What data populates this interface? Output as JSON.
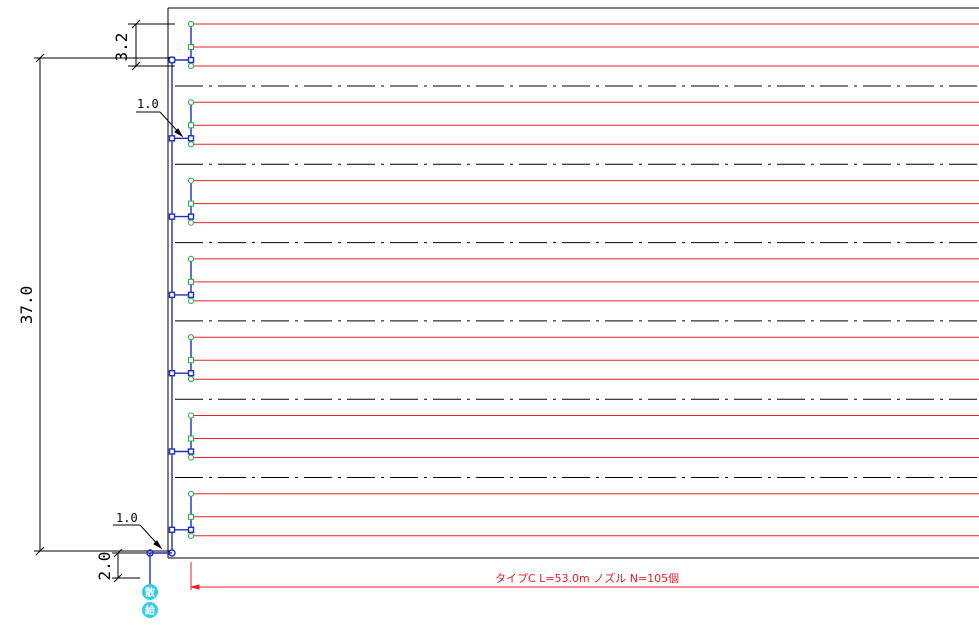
{
  "dimensions": {
    "top_spacing": "3.2",
    "total_height": "37.0",
    "upper_offset": "1.0",
    "lower_offset": "1.0",
    "bottom_offset": "2.0"
  },
  "pipe_annotation": "タイプC L=53.0m ノズル N=105個",
  "valve_bubbles": [
    "散",
    "給"
  ],
  "colors": {
    "lateral": "#e8202a",
    "nozzle": "#22b14c",
    "header": "#1f2fbf",
    "outline": "#000000",
    "bubble": "#33ccee"
  },
  "layout_groups": 7
}
